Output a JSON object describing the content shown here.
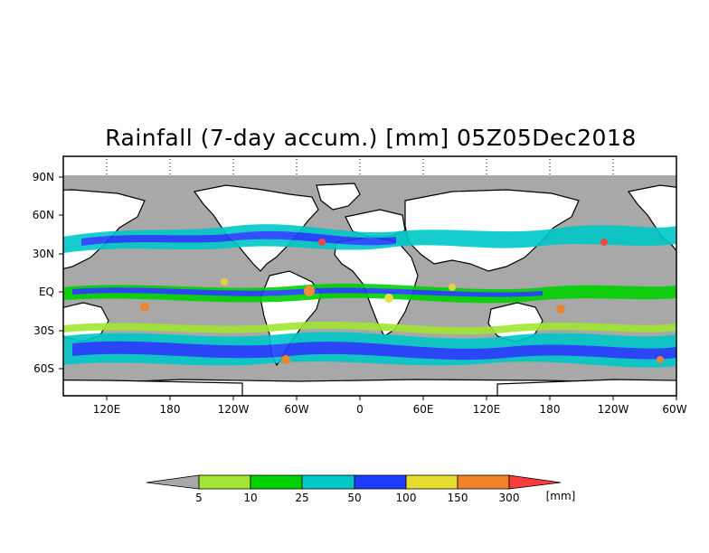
{
  "title": "Rainfall (7-day accum.) [mm] 05Z05Dec2018",
  "map": {
    "y_ticks": [
      "90N",
      "60N",
      "30N",
      "EQ",
      "30S",
      "60S"
    ],
    "x_ticks": [
      "120E",
      "180",
      "120W",
      "60W",
      "0",
      "60E",
      "120E",
      "180",
      "120W",
      "60W"
    ],
    "ocean_color": "#a8a8a8",
    "land_color": "#ffffff"
  },
  "legend": {
    "levels": [
      "5",
      "10",
      "25",
      "50",
      "100",
      "150",
      "300"
    ],
    "unit": "[mm]",
    "colors": [
      "#a8a8a8",
      "#a0e632",
      "#00d200",
      "#00c8c8",
      "#1e3cff",
      "#e6dc32",
      "#f08228",
      "#fa3c3c"
    ]
  }
}
